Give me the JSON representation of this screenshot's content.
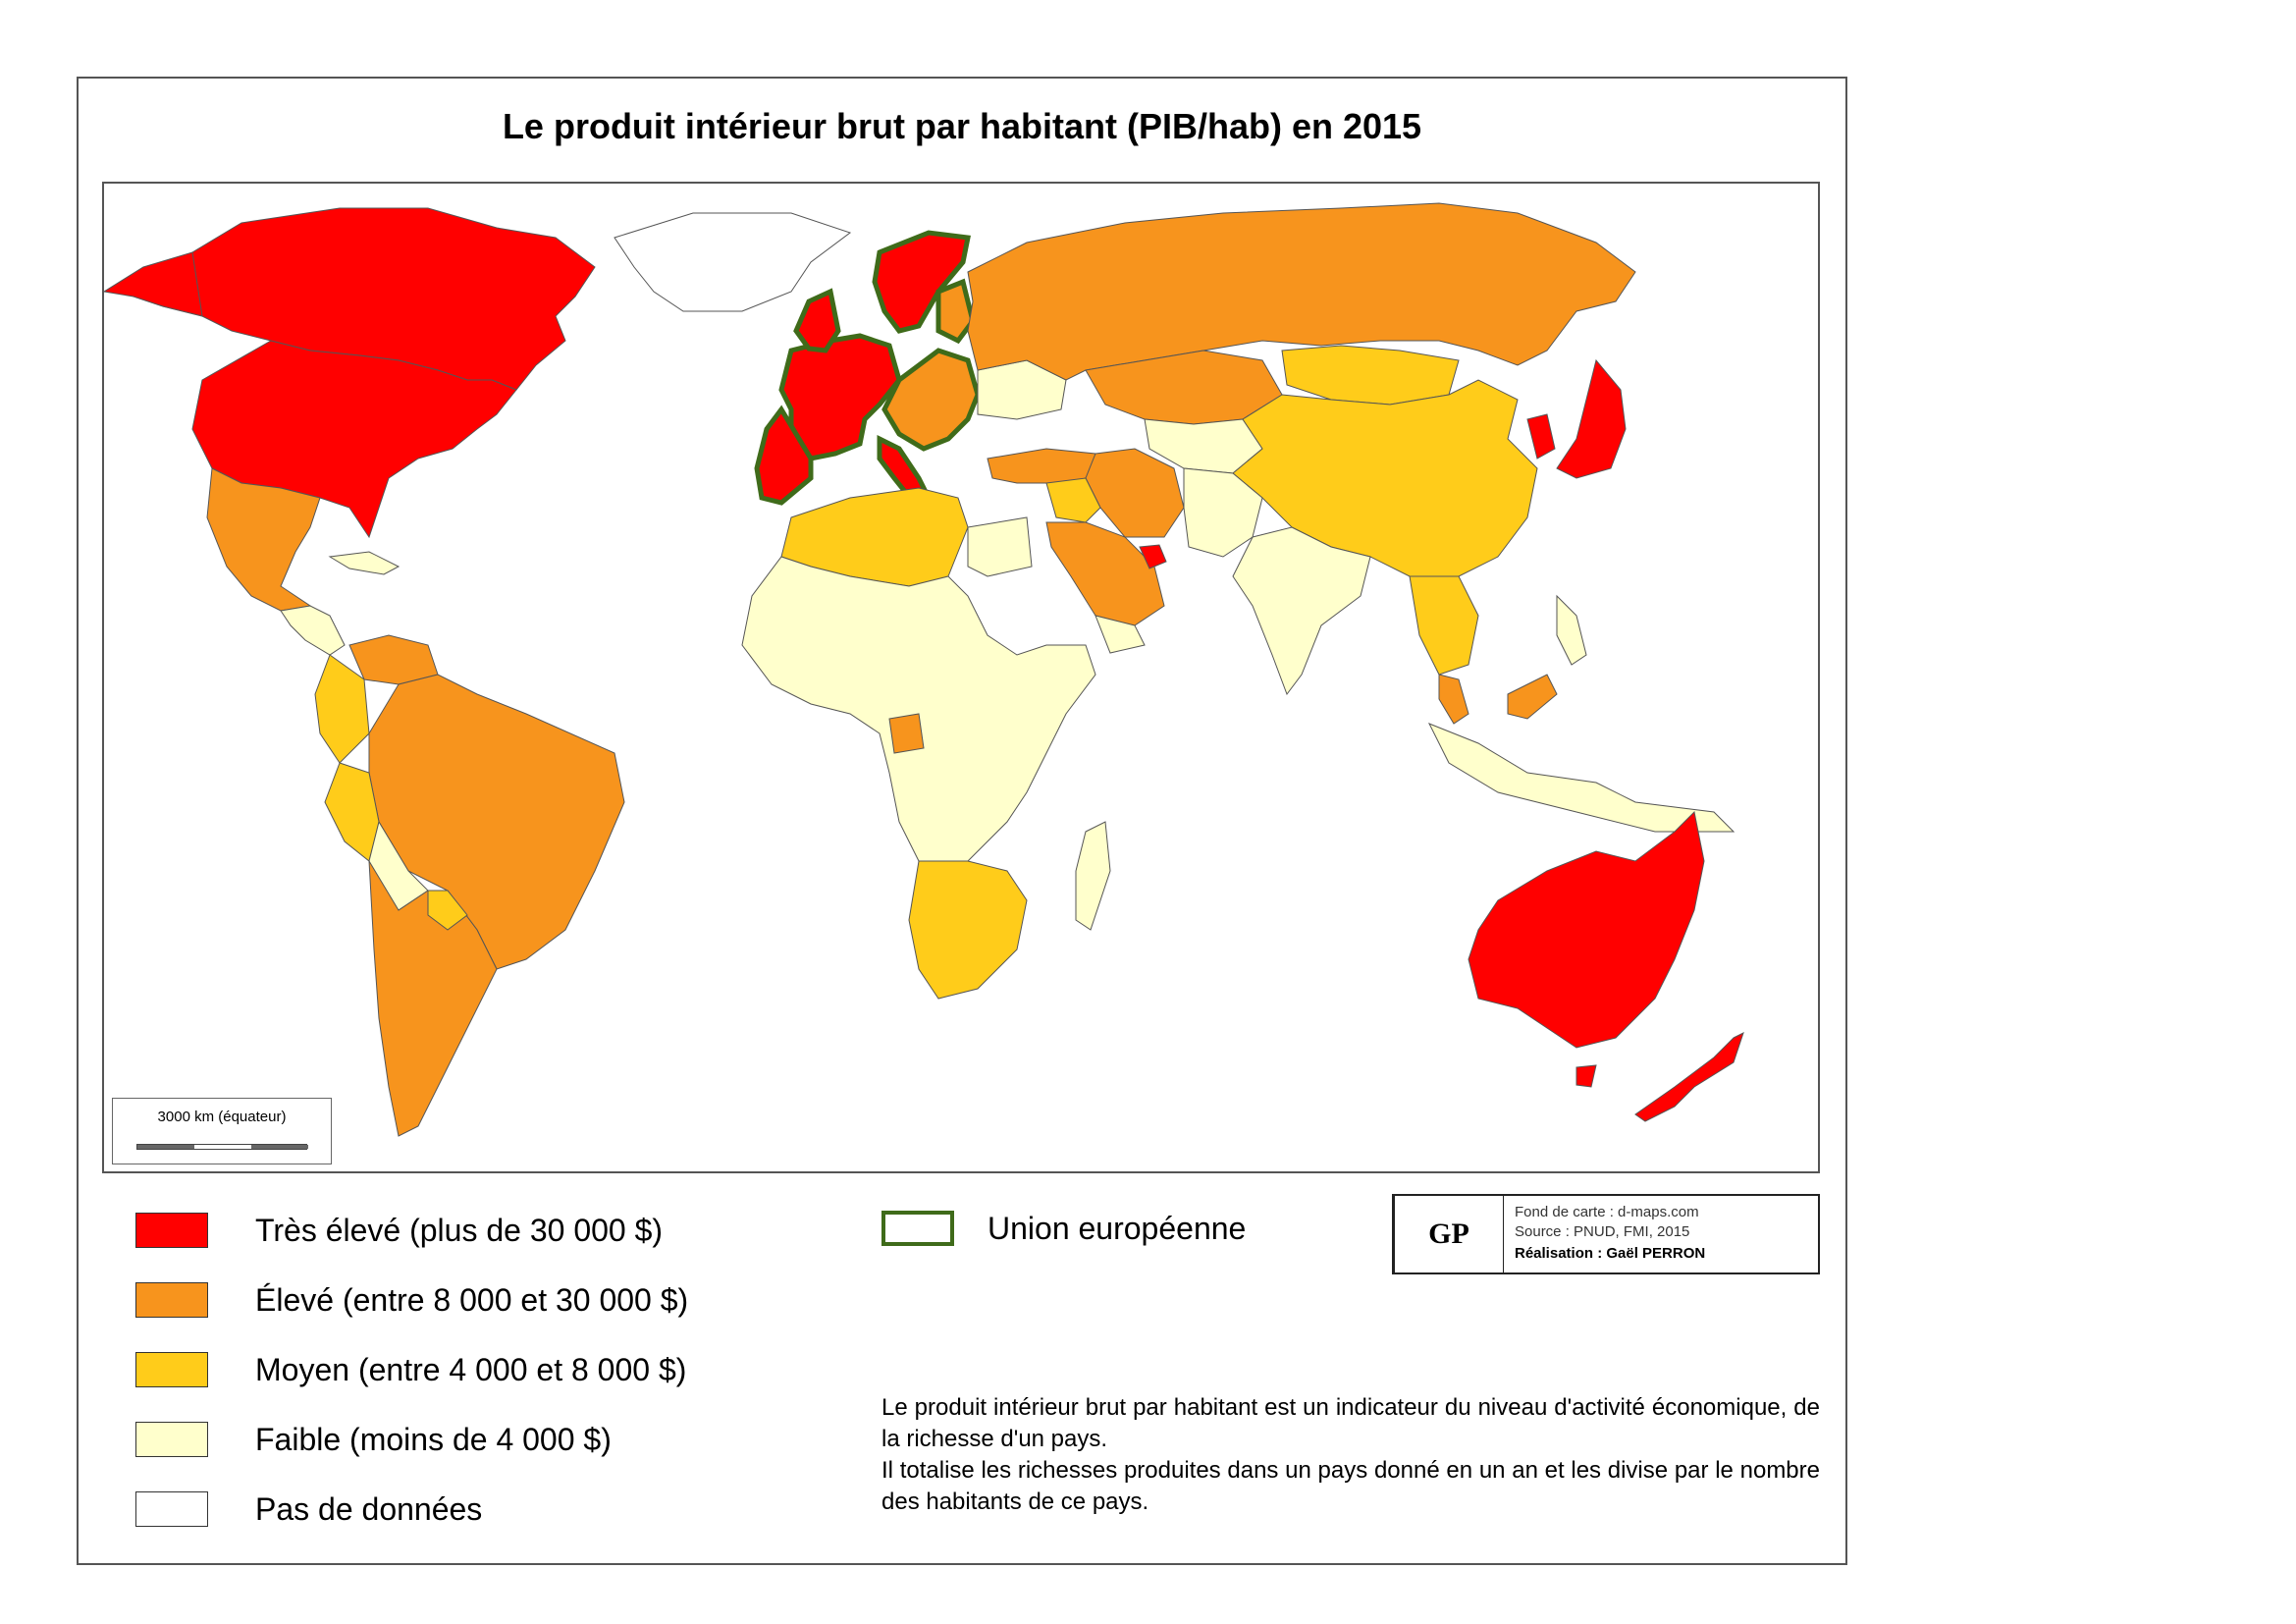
{
  "title": "Le produit intérieur brut par habitant (PIB/hab) en 2015",
  "colors": {
    "tres_eleve": "#ff0000",
    "eleve": "#f7941d",
    "moyen": "#ffcc1a",
    "faible": "#ffffcc",
    "pas_de_donnees": "#ffffff",
    "union_europeenne": "#3f6b1a"
  },
  "scale": {
    "label": "3000 km (équateur)"
  },
  "legend": [
    {
      "label": "Très élevé (plus de 30 000 $)",
      "color": "#ff0000"
    },
    {
      "label": "Élevé (entre 8 000 et 30 000 $)",
      "color": "#f7941d"
    },
    {
      "label": "Moyen (entre 4 000 et 8 000 $)",
      "color": "#ffcc1a"
    },
    {
      "label": "Faible (moins de 4 000 $)",
      "color": "#ffffcc"
    },
    {
      "label": "Pas de données",
      "color": "#ffffff"
    }
  ],
  "eu_legend": {
    "label": "Union européenne",
    "color": "#3f6b1a"
  },
  "credits": {
    "logo": "GP",
    "line1": "Fond de carte : d-maps.com",
    "line2": "Source : PNUD, FMI, 2015",
    "line3": "Réalisation : Gaël PERRON"
  },
  "note": {
    "p1": "Le produit intérieur brut par habitant est un indicateur du niveau d'activité économique, de la richesse d'un pays.",
    "p2": "Il totalise les richesses produites dans un pays donné en un an et les divise par le nombre des habitants de ce pays."
  }
}
